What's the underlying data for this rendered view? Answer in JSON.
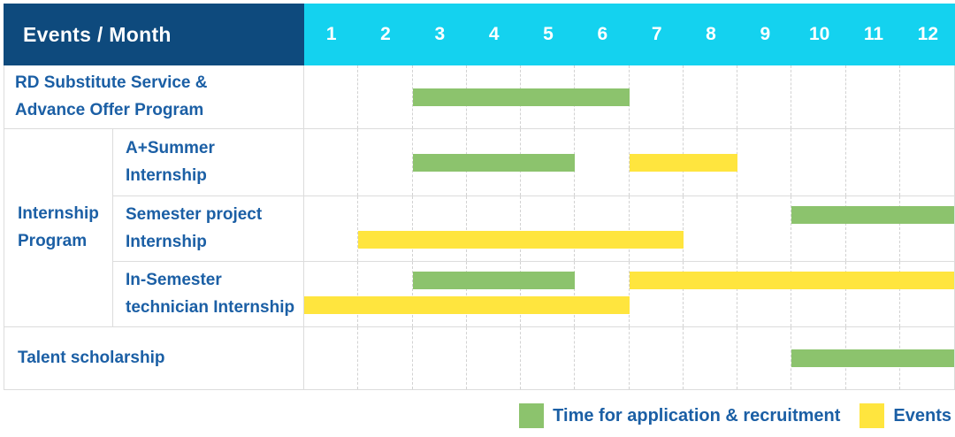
{
  "header": {
    "title": "Events / Month",
    "months": [
      "1",
      "2",
      "3",
      "4",
      "5",
      "6",
      "7",
      "8",
      "9",
      "10",
      "11",
      "12"
    ]
  },
  "rows": [
    {
      "label": "RD Substitute Service & Advance Offer Program",
      "lines": [
        "RD Substitute Service &",
        "Advance Offer Program"
      ]
    },
    {
      "label": "A+Summer Internship",
      "lines": [
        "A+Summer",
        "Internship"
      ]
    },
    {
      "label": "Semester project Internship",
      "lines": [
        "Semester project",
        "Internship"
      ]
    },
    {
      "label": "In-Semester technician Internship",
      "lines": [
        "In-Semester",
        "technician Internship"
      ]
    },
    {
      "label": "Talent scholarship",
      "lines": [
        "Talent scholarship"
      ]
    }
  ],
  "group": {
    "label": "Internship Program",
    "lines": [
      "Internship",
      "Program"
    ]
  },
  "legend": {
    "items": [
      {
        "key": "application",
        "label": "Time for application & recruitment"
      },
      {
        "key": "events",
        "label": "Events"
      }
    ]
  },
  "colors": {
    "navy": "#0e4a7d",
    "cyan": "#14d2ef",
    "label_blue": "#1b5fa5",
    "grid": "#dcdcdc",
    "green_application": "#8cc36d",
    "yellow_events": "#ffe53e"
  },
  "chart_data": {
    "type": "bar",
    "subtype": "gantt",
    "title": "Events / Month",
    "x_axis": {
      "label": "Month",
      "ticks": [
        "1",
        "2",
        "3",
        "4",
        "5",
        "6",
        "7",
        "8",
        "9",
        "10",
        "11",
        "12"
      ],
      "range": [
        1,
        12
      ]
    },
    "grid": "dashed vertical month lines",
    "legend_position": "bottom-right",
    "categories": [
      "RD Substitute Service & Advance Offer Program",
      "A+Summer Internship",
      "Semester project Internship",
      "In-Semester technician Internship",
      "Talent scholarship"
    ],
    "series": [
      {
        "name": "Time for application & recruitment",
        "key": "application",
        "color": "#8cc36d",
        "spans": [
          {
            "category_index": 0,
            "start_month": 3,
            "end_month": 6,
            "lane": "middle"
          },
          {
            "category_index": 1,
            "start_month": 3,
            "end_month": 5,
            "lane": "middle"
          },
          {
            "category_index": 2,
            "start_month": 10,
            "end_month": 12,
            "lane": "top"
          },
          {
            "category_index": 3,
            "start_month": 3,
            "end_month": 5,
            "lane": "top"
          },
          {
            "category_index": 4,
            "start_month": 10,
            "end_month": 12,
            "lane": "middle"
          }
        ]
      },
      {
        "name": "Events",
        "key": "events",
        "color": "#ffe53e",
        "spans": [
          {
            "category_index": 1,
            "start_month": 7,
            "end_month": 8,
            "lane": "middle"
          },
          {
            "category_index": 2,
            "start_month": 2,
            "end_month": 7,
            "lane": "bottom"
          },
          {
            "category_index": 3,
            "start_month": 7,
            "end_month": 12,
            "lane": "top"
          },
          {
            "category_index": 3,
            "start_month": 1,
            "end_month": 6,
            "lane": "bottom"
          }
        ]
      }
    ]
  }
}
